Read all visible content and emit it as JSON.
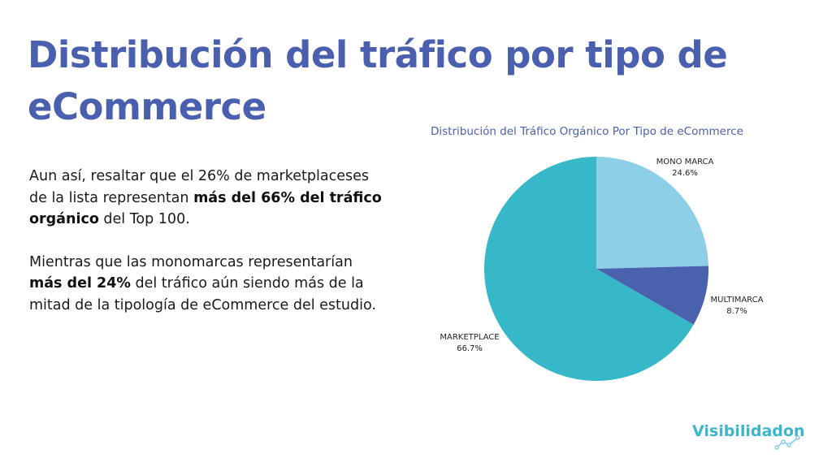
{
  "slide": {
    "title": "Distribución del tráfico por tipo de eCommerce",
    "para1": {
      "t1": "Aun así, resaltar que el 26% de marketplaceses de la lista representan ",
      "b1": "más del 66% del tráfico orgánico",
      "t2": " del Top 100."
    },
    "para2": {
      "t1": "Mientras que las monomarcas representarían ",
      "b1": "más del 24%",
      "t2": " del tráfico aún siendo más de la mitad de la tipología de eCommerce del estudio."
    },
    "logo": "Visibilidadon",
    "logo_icon": "line-graph-icon"
  },
  "chart_data": {
    "type": "pie",
    "title": "Distribución del Tráfico Orgánico Por Tipo de eCommerce",
    "slices": [
      {
        "label": "MONO MARCA",
        "value": 24.6,
        "display": "24.6%",
        "color": "#8ecfe8"
      },
      {
        "label": "MULTIMARCA",
        "value": 8.7,
        "display": "8.7%",
        "color": "#4a62ae"
      },
      {
        "label": "MARKETPLACE",
        "value": 66.7,
        "display": "66.7%",
        "color": "#37b8c8"
      }
    ],
    "start_angle": "12 o'clock",
    "direction": "clockwise"
  },
  "colors": {
    "title": "#4a5fae",
    "logo": "#3ab6c8"
  }
}
